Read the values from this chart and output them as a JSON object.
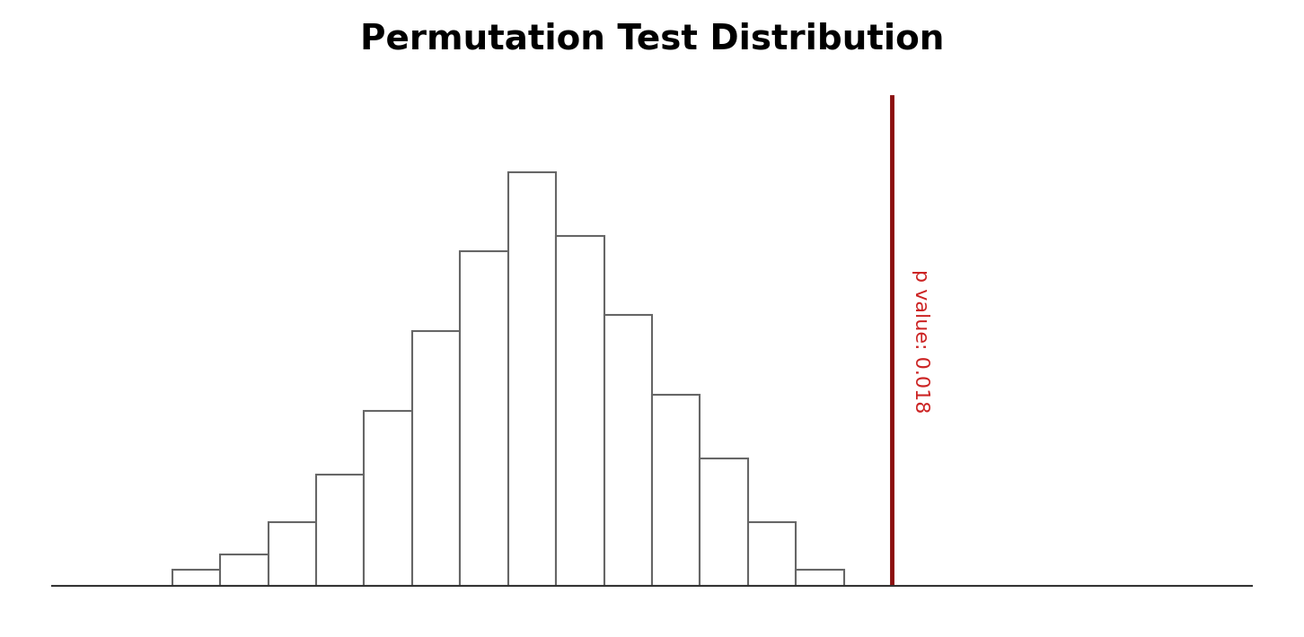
{
  "title": "Permutation Test Distribution",
  "title_fontsize": 28,
  "title_fontweight": "bold",
  "bar_heights": [
    1,
    2,
    4,
    7,
    11,
    16,
    21,
    26,
    22,
    17,
    12,
    8,
    4,
    1
  ],
  "bar_width": 1.0,
  "bar_facecolor": "white",
  "bar_edgecolor": "#666666",
  "bar_linewidth": 1.5,
  "bar_left_start": 0,
  "vline_x": 14.5,
  "vline_color": "#8B1010",
  "vline_linewidth": 3.5,
  "pvalue_text": "p value: 0.018",
  "pvalue_color": "#CC2222",
  "pvalue_fontsize": 16,
  "background_color": "white",
  "xlim": [
    -3,
    22
  ],
  "ylim": [
    0,
    32
  ],
  "axis_linewidth": 1.5,
  "figsize": [
    14.52,
    7.1
  ],
  "dpi": 100
}
